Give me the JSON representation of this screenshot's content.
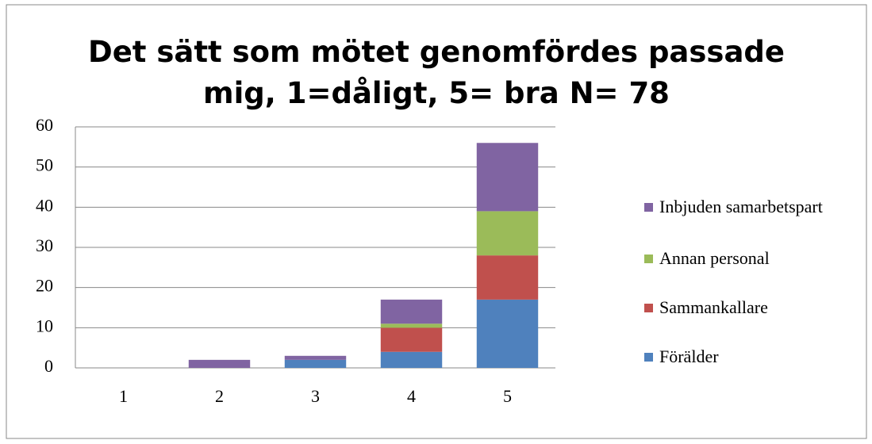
{
  "chart_data": {
    "type": "stacked_bar",
    "title": "Det sätt som mötet genomfördes passade mig, 1=dåligt, 5= bra N= 78",
    "categories": [
      "1",
      "2",
      "3",
      "4",
      "5"
    ],
    "series": [
      {
        "name": "Förälder",
        "color": "#4f81bd",
        "values": [
          0,
          0,
          2,
          4,
          17
        ]
      },
      {
        "name": "Sammankallare",
        "color": "#c0504d",
        "values": [
          0,
          0,
          0,
          6,
          11
        ]
      },
      {
        "name": "Annan personal",
        "color": "#9bbb59",
        "values": [
          0,
          0,
          0,
          1,
          11
        ]
      },
      {
        "name": "Inbjuden samarbetspart",
        "color": "#8064a2",
        "values": [
          0,
          2,
          1,
          6,
          17
        ]
      }
    ],
    "ylim": [
      0,
      60
    ],
    "yticks": [
      0,
      10,
      20,
      30,
      40,
      50,
      60
    ],
    "grid": true,
    "legend": "right"
  }
}
